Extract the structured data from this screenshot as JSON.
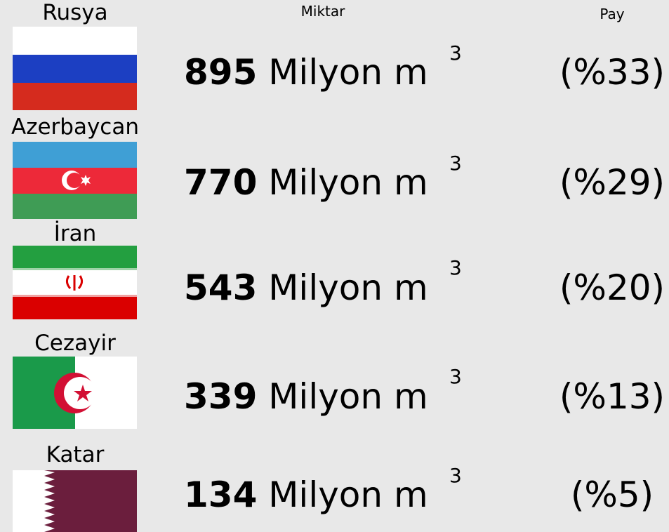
{
  "header": {
    "amount": "Miktar",
    "share": "Pay"
  },
  "rows": [
    {
      "country": "Rusya",
      "amount": 895,
      "unit": "Milyon m",
      "unit_exponent": "3",
      "share": "(%33)"
    },
    {
      "country": "Azerbaycan",
      "amount": 770,
      "unit": "Milyon m",
      "unit_exponent": "3",
      "share": "(%29)"
    },
    {
      "country": "İran",
      "amount": 543,
      "unit": "Milyon m",
      "unit_exponent": "3",
      "share": "(%20)"
    },
    {
      "country": "Cezayir",
      "amount": 339,
      "unit": "Milyon m",
      "unit_exponent": "3",
      "share": "(%13)"
    },
    {
      "country": "Katar",
      "amount": 134,
      "unit": "Milyon m",
      "unit_exponent": "3",
      "share": "(%5)"
    }
  ]
}
